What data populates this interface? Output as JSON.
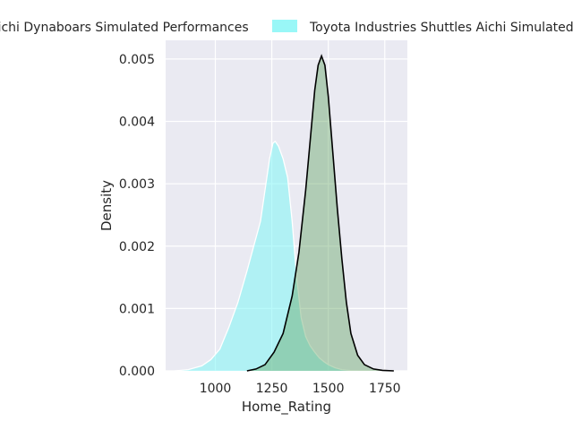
{
  "chart_data": {
    "type": "area",
    "xlabel": "Home_Rating",
    "ylabel": "Density",
    "xlim": [
      780,
      1850
    ],
    "ylim": [
      0,
      0.0053
    ],
    "x_ticks": [
      1000,
      1250,
      1500,
      1750
    ],
    "y_ticks": [
      0.0,
      0.001,
      0.002,
      0.003,
      0.004,
      0.005
    ],
    "grid": true,
    "legend_position": "top, outside plot",
    "series": [
      {
        "name": "Toyota Industries Shuttles Aichi Simulated Performances",
        "fill_color": "#7ff5f5",
        "line_color": "#ffffff",
        "fill_opacity": 0.55,
        "x": [
          820,
          880,
          940,
          980,
          1020,
          1060,
          1100,
          1140,
          1170,
          1200,
          1220,
          1240,
          1255,
          1265,
          1280,
          1300,
          1320,
          1340,
          1360,
          1380,
          1400,
          1420,
          1440,
          1460,
          1480,
          1500,
          1530,
          1560,
          1600,
          1650,
          1700
        ],
        "y": [
          0.0,
          2e-05,
          8e-05,
          0.00018,
          0.00035,
          0.0007,
          0.0011,
          0.0016,
          0.002,
          0.0024,
          0.0029,
          0.0034,
          0.00365,
          0.00368,
          0.0036,
          0.0034,
          0.0031,
          0.0024,
          0.0015,
          0.00085,
          0.00055,
          0.0004,
          0.0003,
          0.00021,
          0.00015,
          0.0001,
          5e-05,
          2e-05,
          5e-06,
          1e-06,
          0.0
        ]
      },
      {
        "name": "Aichi Dynaboars Simulated Performances",
        "fill_color": "#6aa86a",
        "line_color": "#000000",
        "fill_opacity": 0.45,
        "x": [
          1140,
          1180,
          1220,
          1260,
          1300,
          1340,
          1370,
          1400,
          1420,
          1440,
          1455,
          1470,
          1485,
          1500,
          1520,
          1540,
          1560,
          1580,
          1600,
          1630,
          1660,
          1700,
          1740,
          1790
        ],
        "y": [
          0.0,
          3e-05,
          0.0001,
          0.0003,
          0.0006,
          0.0012,
          0.0019,
          0.0029,
          0.0037,
          0.0045,
          0.0049,
          0.00505,
          0.0049,
          0.0044,
          0.0035,
          0.0026,
          0.0018,
          0.0011,
          0.0006,
          0.00025,
          0.0001,
          3e-05,
          8e-06,
          0.0
        ]
      }
    ],
    "legend": [
      {
        "label": "Aichi Dynaboars Simulated Performances",
        "color": "#6aa86a"
      },
      {
        "label": "Toyota Industries Shuttles Aichi Simulated Performances",
        "color": "#7ff5f5"
      }
    ]
  }
}
